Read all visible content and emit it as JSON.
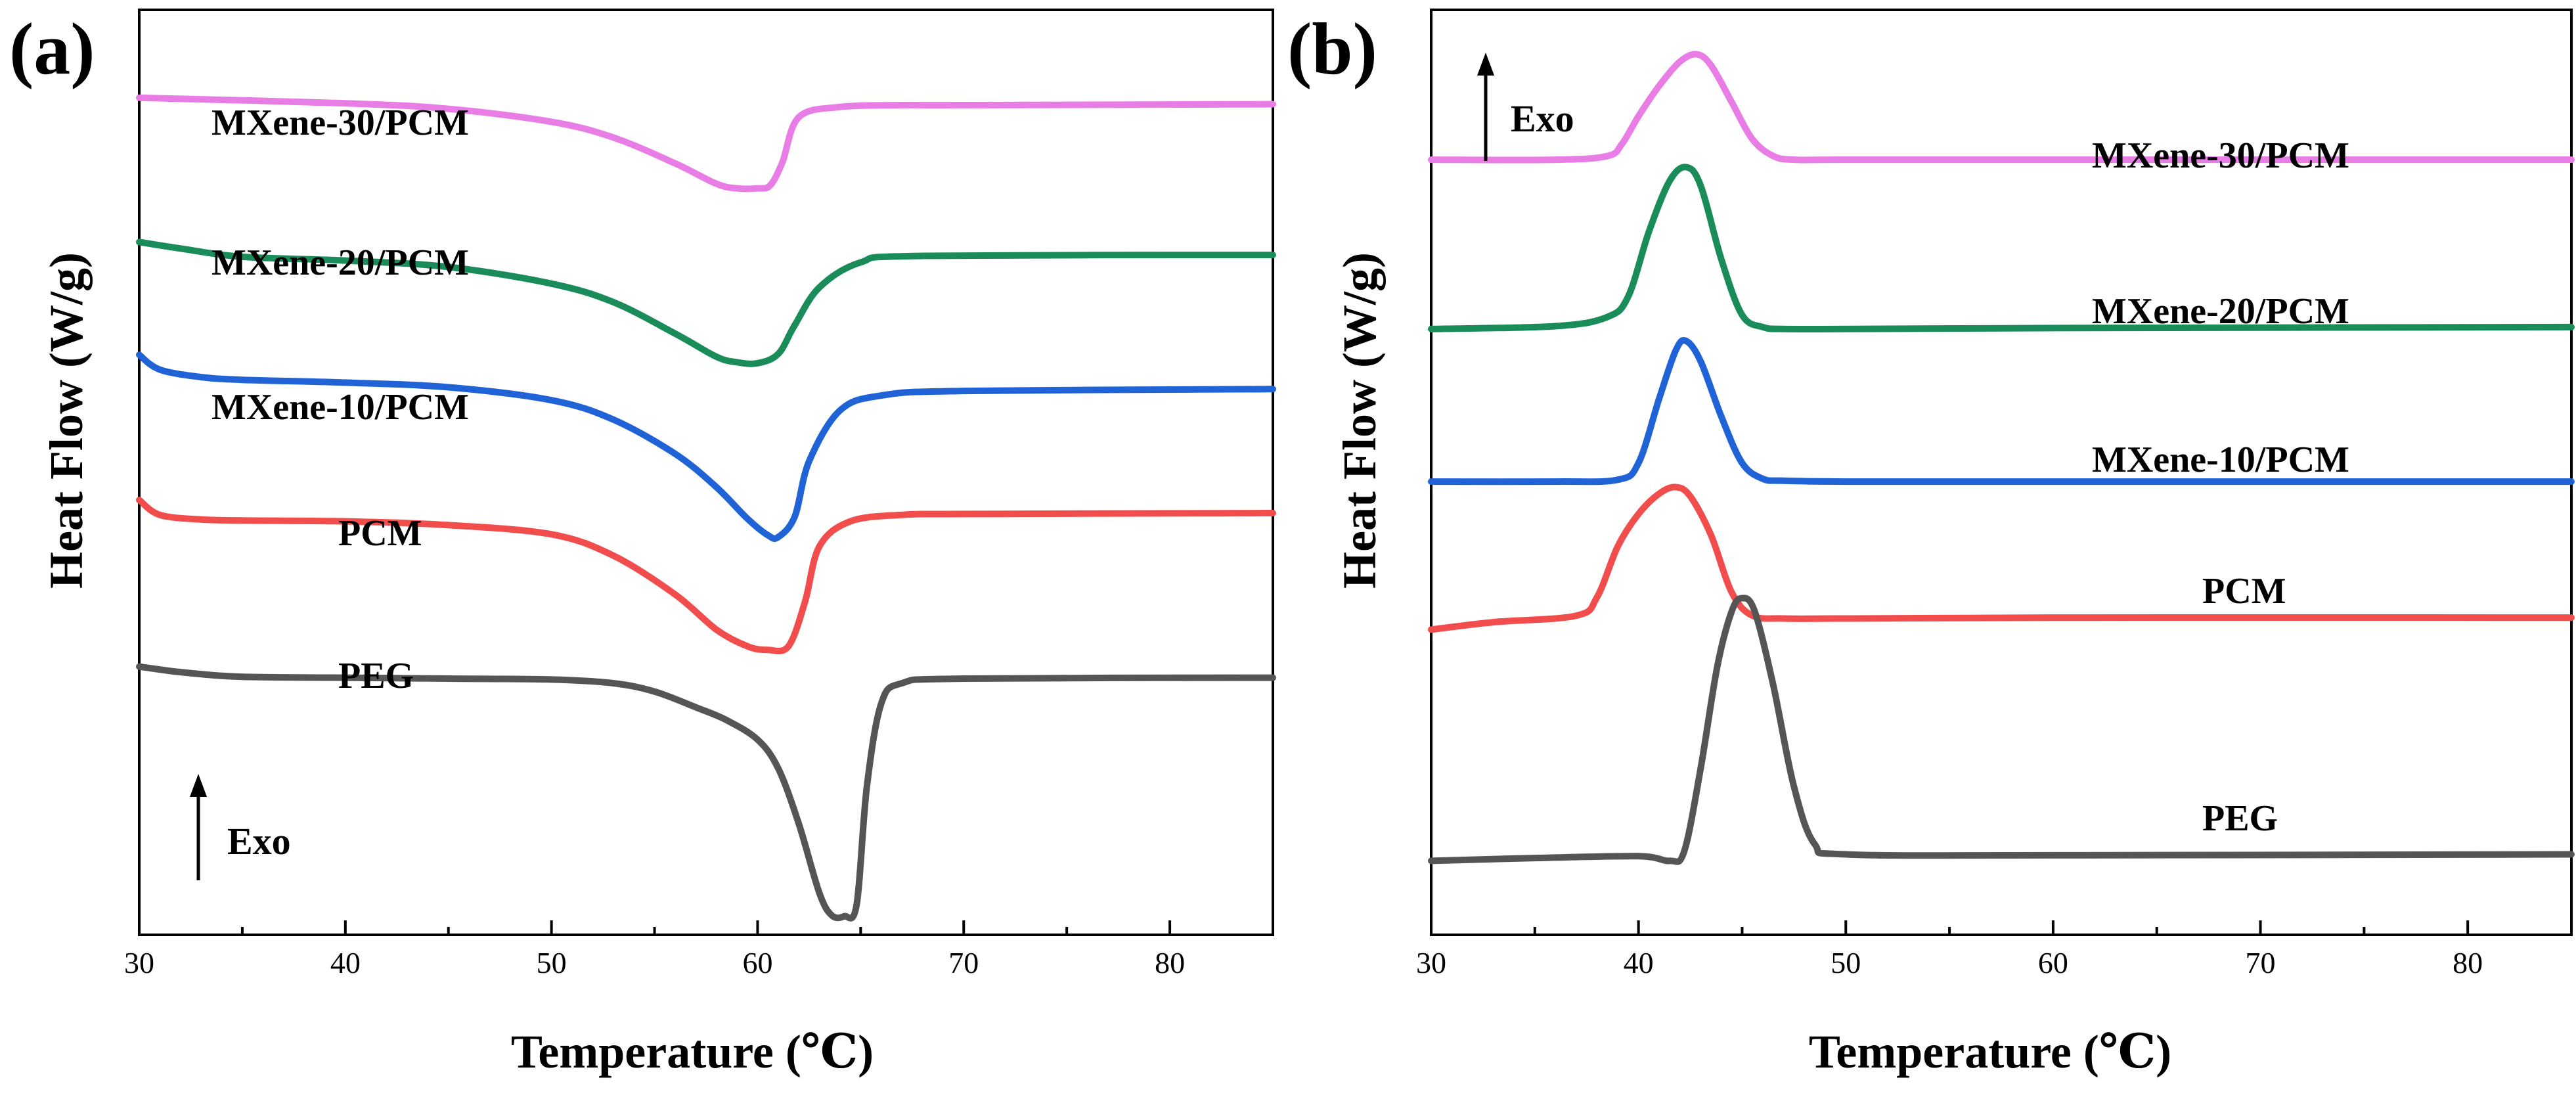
{
  "figure": {
    "panels": [
      {
        "id": "a",
        "label": "(a)"
      },
      {
        "id": "b",
        "label": "(b)"
      }
    ]
  },
  "chart_data": [
    {
      "panel": "(a)",
      "type": "line",
      "xlabel": "Temperature (℃)",
      "ylabel": "Heat Flow (W/g)",
      "xlim": [
        30,
        85
      ],
      "xticks": [
        30,
        40,
        50,
        60,
        70,
        80
      ],
      "ylim": [
        0,
        1
      ],
      "yticks_shown": false,
      "grid": false,
      "annotation": "Exo",
      "annotation_placement": "bottom-left",
      "series": [
        {
          "name": "MXene-30/PCM",
          "color": "#e87de6",
          "x": [
            30,
            40,
            45,
            50,
            53,
            56,
            58,
            59,
            60,
            60.6,
            61.2,
            62,
            64,
            67,
            70,
            85
          ],
          "y": [
            0.905,
            0.899,
            0.893,
            0.879,
            0.862,
            0.834,
            0.812,
            0.807,
            0.807,
            0.81,
            0.835,
            0.884,
            0.895,
            0.897,
            0.897,
            0.898
          ]
        },
        {
          "name": "MXene-20/PCM",
          "color": "#1a8c5a",
          "x": [
            30,
            32,
            35,
            40,
            45,
            50,
            53,
            56,
            58,
            59,
            60,
            61,
            61.8,
            63,
            65,
            68,
            85
          ],
          "y": [
            0.749,
            0.742,
            0.733,
            0.729,
            0.722,
            0.704,
            0.684,
            0.65,
            0.625,
            0.619,
            0.618,
            0.628,
            0.659,
            0.7,
            0.727,
            0.734,
            0.735
          ]
        },
        {
          "name": "MXene-10/PCM",
          "color": "#1f63d6",
          "x": [
            30,
            31,
            33,
            35,
            40,
            45,
            50,
            53,
            56,
            58,
            59.5,
            60.5,
            61,
            61.8,
            62.5,
            64,
            66,
            70,
            85
          ],
          "y": [
            0.627,
            0.611,
            0.603,
            0.6,
            0.597,
            0.592,
            0.578,
            0.557,
            0.52,
            0.484,
            0.45,
            0.432,
            0.43,
            0.452,
            0.512,
            0.567,
            0.583,
            0.588,
            0.59
          ]
        },
        {
          "name": "PCM",
          "color": "#f24d4d",
          "x": [
            30,
            31,
            33,
            35,
            40,
            45,
            50,
            53,
            56,
            58,
            59.5,
            60.5,
            61.5,
            62.3,
            63,
            64.5,
            67,
            70,
            85
          ],
          "y": [
            0.47,
            0.454,
            0.449,
            0.448,
            0.447,
            0.443,
            0.433,
            0.41,
            0.368,
            0.33,
            0.312,
            0.308,
            0.312,
            0.36,
            0.42,
            0.447,
            0.454,
            0.455,
            0.456
          ]
        },
        {
          "name": "PEG",
          "color": "#555555",
          "x": [
            30,
            32,
            35,
            40,
            45,
            50,
            53,
            55,
            57,
            58.5,
            60,
            61,
            62,
            63,
            63.6,
            64.2,
            64.8,
            65.3,
            66,
            67,
            70,
            85
          ],
          "y": [
            0.29,
            0.284,
            0.279,
            0.278,
            0.277,
            0.276,
            0.272,
            0.263,
            0.246,
            0.232,
            0.211,
            0.18,
            0.12,
            0.045,
            0.021,
            0.02,
            0.032,
            0.16,
            0.25,
            0.272,
            0.277,
            0.278
          ]
        }
      ]
    },
    {
      "panel": "(b)",
      "type": "line",
      "xlabel": "Temperature (℃)",
      "ylabel": "Heat Flow (W/g)",
      "xlim": [
        30,
        85
      ],
      "xticks": [
        30,
        40,
        50,
        60,
        70,
        80
      ],
      "ylim": [
        0,
        1
      ],
      "yticks_shown": false,
      "grid": false,
      "annotation": "Exo",
      "annotation_placement": "top-left",
      "series": [
        {
          "name": "MXene-30/PCM",
          "color": "#e87de6",
          "x": [
            30,
            36,
            38.5,
            39.2,
            40,
            41,
            42,
            42.8,
            43.5,
            44.5,
            45.5,
            46.5,
            47.5,
            50,
            60,
            85
          ],
          "y": [
            0.838,
            0.838,
            0.842,
            0.855,
            0.885,
            0.918,
            0.944,
            0.952,
            0.94,
            0.9,
            0.86,
            0.842,
            0.838,
            0.838,
            0.838,
            0.838
          ]
        },
        {
          "name": "MXene-20/PCM",
          "color": "#1a8c5a",
          "x": [
            30,
            36,
            38.5,
            39.5,
            40.5,
            41.5,
            42.3,
            43,
            44,
            45,
            46,
            47,
            50,
            60,
            85
          ],
          "y": [
            0.655,
            0.658,
            0.668,
            0.69,
            0.76,
            0.815,
            0.83,
            0.81,
            0.73,
            0.67,
            0.657,
            0.655,
            0.655,
            0.656,
            0.657
          ]
        },
        {
          "name": "MXene-10/PCM",
          "color": "#1f63d6",
          "x": [
            30,
            36,
            39,
            40,
            41,
            41.8,
            42.3,
            43,
            44,
            45,
            46,
            47,
            50,
            60,
            85
          ],
          "y": [
            0.49,
            0.49,
            0.492,
            0.51,
            0.58,
            0.632,
            0.642,
            0.62,
            0.56,
            0.51,
            0.493,
            0.491,
            0.49,
            0.49,
            0.49
          ]
        },
        {
          "name": "PCM",
          "color": "#f24d4d",
          "x": [
            30,
            33,
            37,
            38,
            39,
            40,
            41,
            41.8,
            42.5,
            43.5,
            44.5,
            45.5,
            47,
            50,
            60,
            85
          ],
          "y": [
            0.33,
            0.338,
            0.345,
            0.365,
            0.42,
            0.455,
            0.477,
            0.484,
            0.474,
            0.432,
            0.37,
            0.345,
            0.342,
            0.342,
            0.343,
            0.343
          ]
        },
        {
          "name": "PEG",
          "color": "#555555",
          "x": [
            30,
            35,
            40,
            41.5,
            42.2,
            43,
            43.8,
            44.5,
            45,
            45.6,
            46.5,
            47.5,
            48.5,
            50,
            60,
            85
          ],
          "y": [
            0.08,
            0.083,
            0.085,
            0.08,
            0.09,
            0.18,
            0.29,
            0.35,
            0.364,
            0.35,
            0.27,
            0.16,
            0.098,
            0.087,
            0.086,
            0.087
          ]
        }
      ]
    }
  ]
}
